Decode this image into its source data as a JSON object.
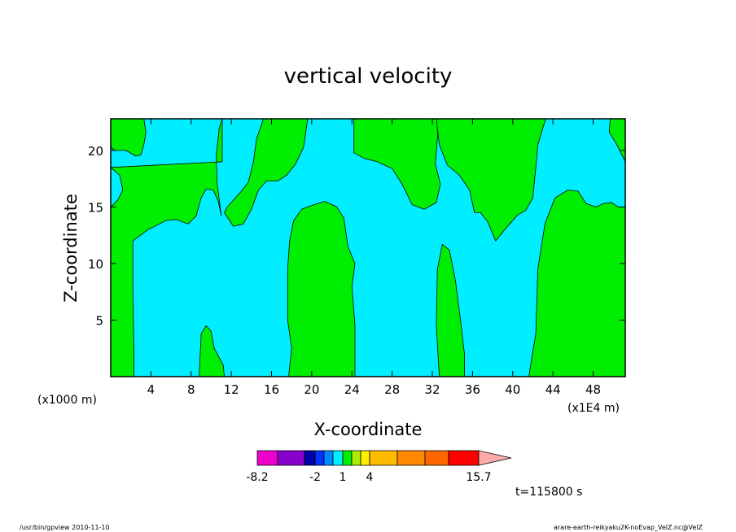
{
  "chart_data": {
    "type": "heatmap",
    "title": "vertical velocity",
    "xlabel": "X-coordinate",
    "ylabel": "Z-coordinate",
    "x_unit_label": "(x1000 m)",
    "x_scale_label": "(x1E4 m)",
    "xlim": [
      0,
      51.2
    ],
    "ylim": [
      0,
      22.8
    ],
    "x_ticks": [
      4,
      8,
      12,
      16,
      20,
      24,
      28,
      32,
      36,
      40,
      44,
      48
    ],
    "y_ticks": [
      5,
      10,
      15,
      20
    ],
    "colors": {
      "negative_region": "#00eeff",
      "positive_region": "#00ee00",
      "contour_line": "#000000"
    },
    "colorbar": {
      "colors": [
        "#ee00cc",
        "#8800cc",
        "#0000aa",
        "#0033ff",
        "#0088ff",
        "#00eeff",
        "#00ee00",
        "#aaee00",
        "#ffee00",
        "#ffbb00",
        "#ff8800",
        "#ff6600",
        "#ff0000",
        "#ff7777",
        "#ffaaaa"
      ],
      "tick_labels": [
        "-8.2",
        "-2",
        "1",
        "4",
        "15.7"
      ]
    },
    "time_label": "t=115800 s",
    "footer_left": "/usr/bin/gpview   2010-11-10",
    "footer_right": "arare-earth-reikyaku2K-noEvap_VelZ.nc@VelZ",
    "positive_regions": [
      [
        [
          0,
          22.8
        ],
        [
          3.3,
          22.8
        ],
        [
          3.5,
          21.6
        ],
        [
          3.3,
          20.5
        ],
        [
          3,
          19.6
        ],
        [
          2.5,
          19.5
        ],
        [
          1.5,
          20
        ],
        [
          0.4,
          20
        ],
        [
          0,
          20.3
        ]
      ],
      [
        [
          0,
          18.5
        ],
        [
          0.9,
          17.8
        ],
        [
          1.2,
          16.5
        ],
        [
          0.7,
          15.6
        ],
        [
          0,
          15
        ],
        [
          0,
          0
        ],
        [
          2.3,
          0
        ],
        [
          2.3,
          2.5
        ],
        [
          2.2,
          7.5
        ],
        [
          2.2,
          12
        ],
        [
          3.7,
          13
        ],
        [
          5.5,
          13.8
        ],
        [
          6.5,
          13.9
        ],
        [
          7.7,
          13.5
        ],
        [
          8.5,
          14.2
        ],
        [
          9,
          15.8
        ],
        [
          9.5,
          16.6
        ],
        [
          10.2,
          16.5
        ],
        [
          10.7,
          15.5
        ],
        [
          11,
          14.2
        ],
        [
          10.6,
          17
        ],
        [
          10.5,
          19.5
        ],
        [
          10.8,
          22
        ],
        [
          11.1,
          22.8
        ],
        [
          11.1,
          19
        ]
      ],
      [
        [
          15.2,
          22.8
        ],
        [
          14.5,
          21
        ],
        [
          14.2,
          19
        ],
        [
          13.7,
          17.2
        ],
        [
          13,
          16.4
        ],
        [
          11.6,
          15
        ],
        [
          11.3,
          14.5
        ],
        [
          12.2,
          13.3
        ],
        [
          13.2,
          13.5
        ],
        [
          14,
          14.8
        ],
        [
          14.7,
          16.5
        ],
        [
          15.5,
          17.3
        ],
        [
          16.6,
          17.3
        ],
        [
          17.5,
          17.8
        ],
        [
          18.4,
          18.8
        ],
        [
          19.2,
          20.3
        ],
        [
          19.6,
          22.8
        ]
      ],
      [
        [
          24.2,
          22.8
        ],
        [
          24.2,
          19.8
        ],
        [
          25.2,
          19.3
        ],
        [
          26.5,
          19
        ],
        [
          28,
          18.4
        ],
        [
          29,
          17
        ],
        [
          30,
          15.2
        ],
        [
          31.2,
          14.8
        ],
        [
          32.4,
          15.4
        ],
        [
          32.8,
          17
        ],
        [
          32.3,
          18.8
        ],
        [
          32.5,
          21
        ],
        [
          32.6,
          22.8
        ]
      ],
      [
        [
          32.4,
          22.8
        ],
        [
          32.7,
          20.5
        ],
        [
          33.5,
          18.7
        ],
        [
          34.7,
          17.8
        ],
        [
          35.7,
          16.5
        ],
        [
          36.2,
          14.5
        ],
        [
          36.8,
          14.5
        ],
        [
          37.5,
          13.7
        ],
        [
          38.3,
          12
        ],
        [
          39.2,
          13
        ],
        [
          40.5,
          14.3
        ],
        [
          41.3,
          14.7
        ],
        [
          42,
          15.8
        ],
        [
          42.3,
          18.5
        ],
        [
          42.5,
          20.5
        ],
        [
          43,
          22
        ],
        [
          43.3,
          22.8
        ]
      ],
      [
        [
          49.7,
          22.8
        ],
        [
          49.6,
          21.6
        ],
        [
          50.3,
          20.6
        ],
        [
          51.2,
          19
        ],
        [
          51.2,
          22.8
        ]
      ],
      [
        [
          17.7,
          0
        ],
        [
          18,
          2.5
        ],
        [
          17.6,
          5
        ],
        [
          17.6,
          9.5
        ],
        [
          17.8,
          12
        ],
        [
          18.2,
          13.8
        ],
        [
          19,
          14.8
        ],
        [
          20.2,
          15.2
        ],
        [
          21.3,
          15.5
        ],
        [
          22.5,
          15
        ],
        [
          23.2,
          14
        ],
        [
          23.6,
          11.5
        ],
        [
          24.3,
          10
        ],
        [
          24,
          8
        ],
        [
          24.3,
          4.5
        ],
        [
          24.3,
          0
        ]
      ],
      [
        [
          8.8,
          0
        ],
        [
          9,
          3.8
        ],
        [
          9.5,
          4.5
        ],
        [
          10,
          4
        ],
        [
          10.3,
          2.5
        ],
        [
          11.2,
          1
        ],
        [
          11.3,
          0
        ]
      ],
      [
        [
          32.7,
          0
        ],
        [
          32.4,
          4.5
        ],
        [
          32.5,
          9.5
        ],
        [
          33,
          11.7
        ],
        [
          33.7,
          11.2
        ],
        [
          34.3,
          8.5
        ],
        [
          34.8,
          5
        ],
        [
          35.2,
          2
        ],
        [
          35.2,
          0
        ]
      ],
      [
        [
          41.6,
          0
        ],
        [
          42.3,
          3.8
        ],
        [
          42.5,
          9.5
        ],
        [
          43.2,
          13.5
        ],
        [
          44.2,
          15.8
        ],
        [
          45.5,
          16.5
        ],
        [
          46.5,
          16.4
        ],
        [
          47.3,
          15.3
        ],
        [
          48.3,
          15
        ],
        [
          49,
          15.3
        ],
        [
          49.8,
          15.4
        ],
        [
          50.5,
          15
        ],
        [
          51.2,
          15
        ],
        [
          51.2,
          0
        ]
      ]
    ]
  }
}
